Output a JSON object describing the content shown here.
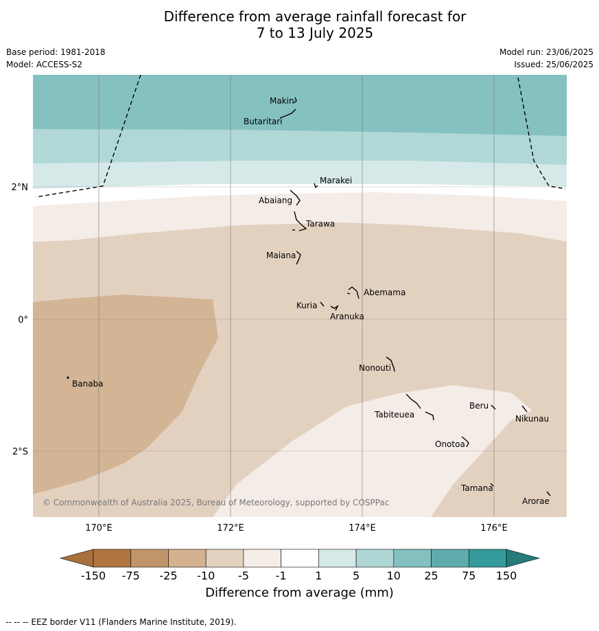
{
  "title": {
    "line1": "Difference from average rainfall forecast for",
    "line2": "7 to 13 July 2025"
  },
  "meta_left": {
    "base_period": "Base period: 1981-2018",
    "model": "Model: ACCESS-S2"
  },
  "meta_right": {
    "model_run": "Model run: 23/06/2025",
    "issued": "Issued: 25/06/2025"
  },
  "map": {
    "lon_labels": [
      "170°E",
      "172°E",
      "174°E",
      "176°E"
    ],
    "lat_labels": [
      "2°N",
      "0°",
      "2°S"
    ],
    "places": [
      "Makin",
      "Butaritari",
      "Marakei",
      "Abaiang",
      "Tarawa",
      "Maiana",
      "Abemama",
      "Kuria",
      "Aranuka",
      "Nonouti",
      "Banaba",
      "Beru",
      "Tabiteuea",
      "Nikunau",
      "Onotoa",
      "Tamana",
      "Arorae"
    ],
    "copyright": "© Commonwealth of Australia 2025, Bureau of Meteorology, supported by COSPPac"
  },
  "colorbar": {
    "labels": [
      "-150",
      "-75",
      "-25",
      "-10",
      "-5",
      "-1",
      "1",
      "5",
      "10",
      "25",
      "75",
      "150"
    ],
    "colors": [
      "#a8703a",
      "#ae763e",
      "#c0956a",
      "#d4b18f",
      "#e4d2c0",
      "#f4ede8",
      "#ffffff",
      "#d4e9e8",
      "#aed6d4",
      "#83c0bf",
      "#5eadac",
      "#349b9a",
      "#257b7a"
    ],
    "title": "Difference from average (mm)"
  },
  "footer": "--  --  -- EEZ border V11 (Flanders Marine Institute, 2019)."
}
